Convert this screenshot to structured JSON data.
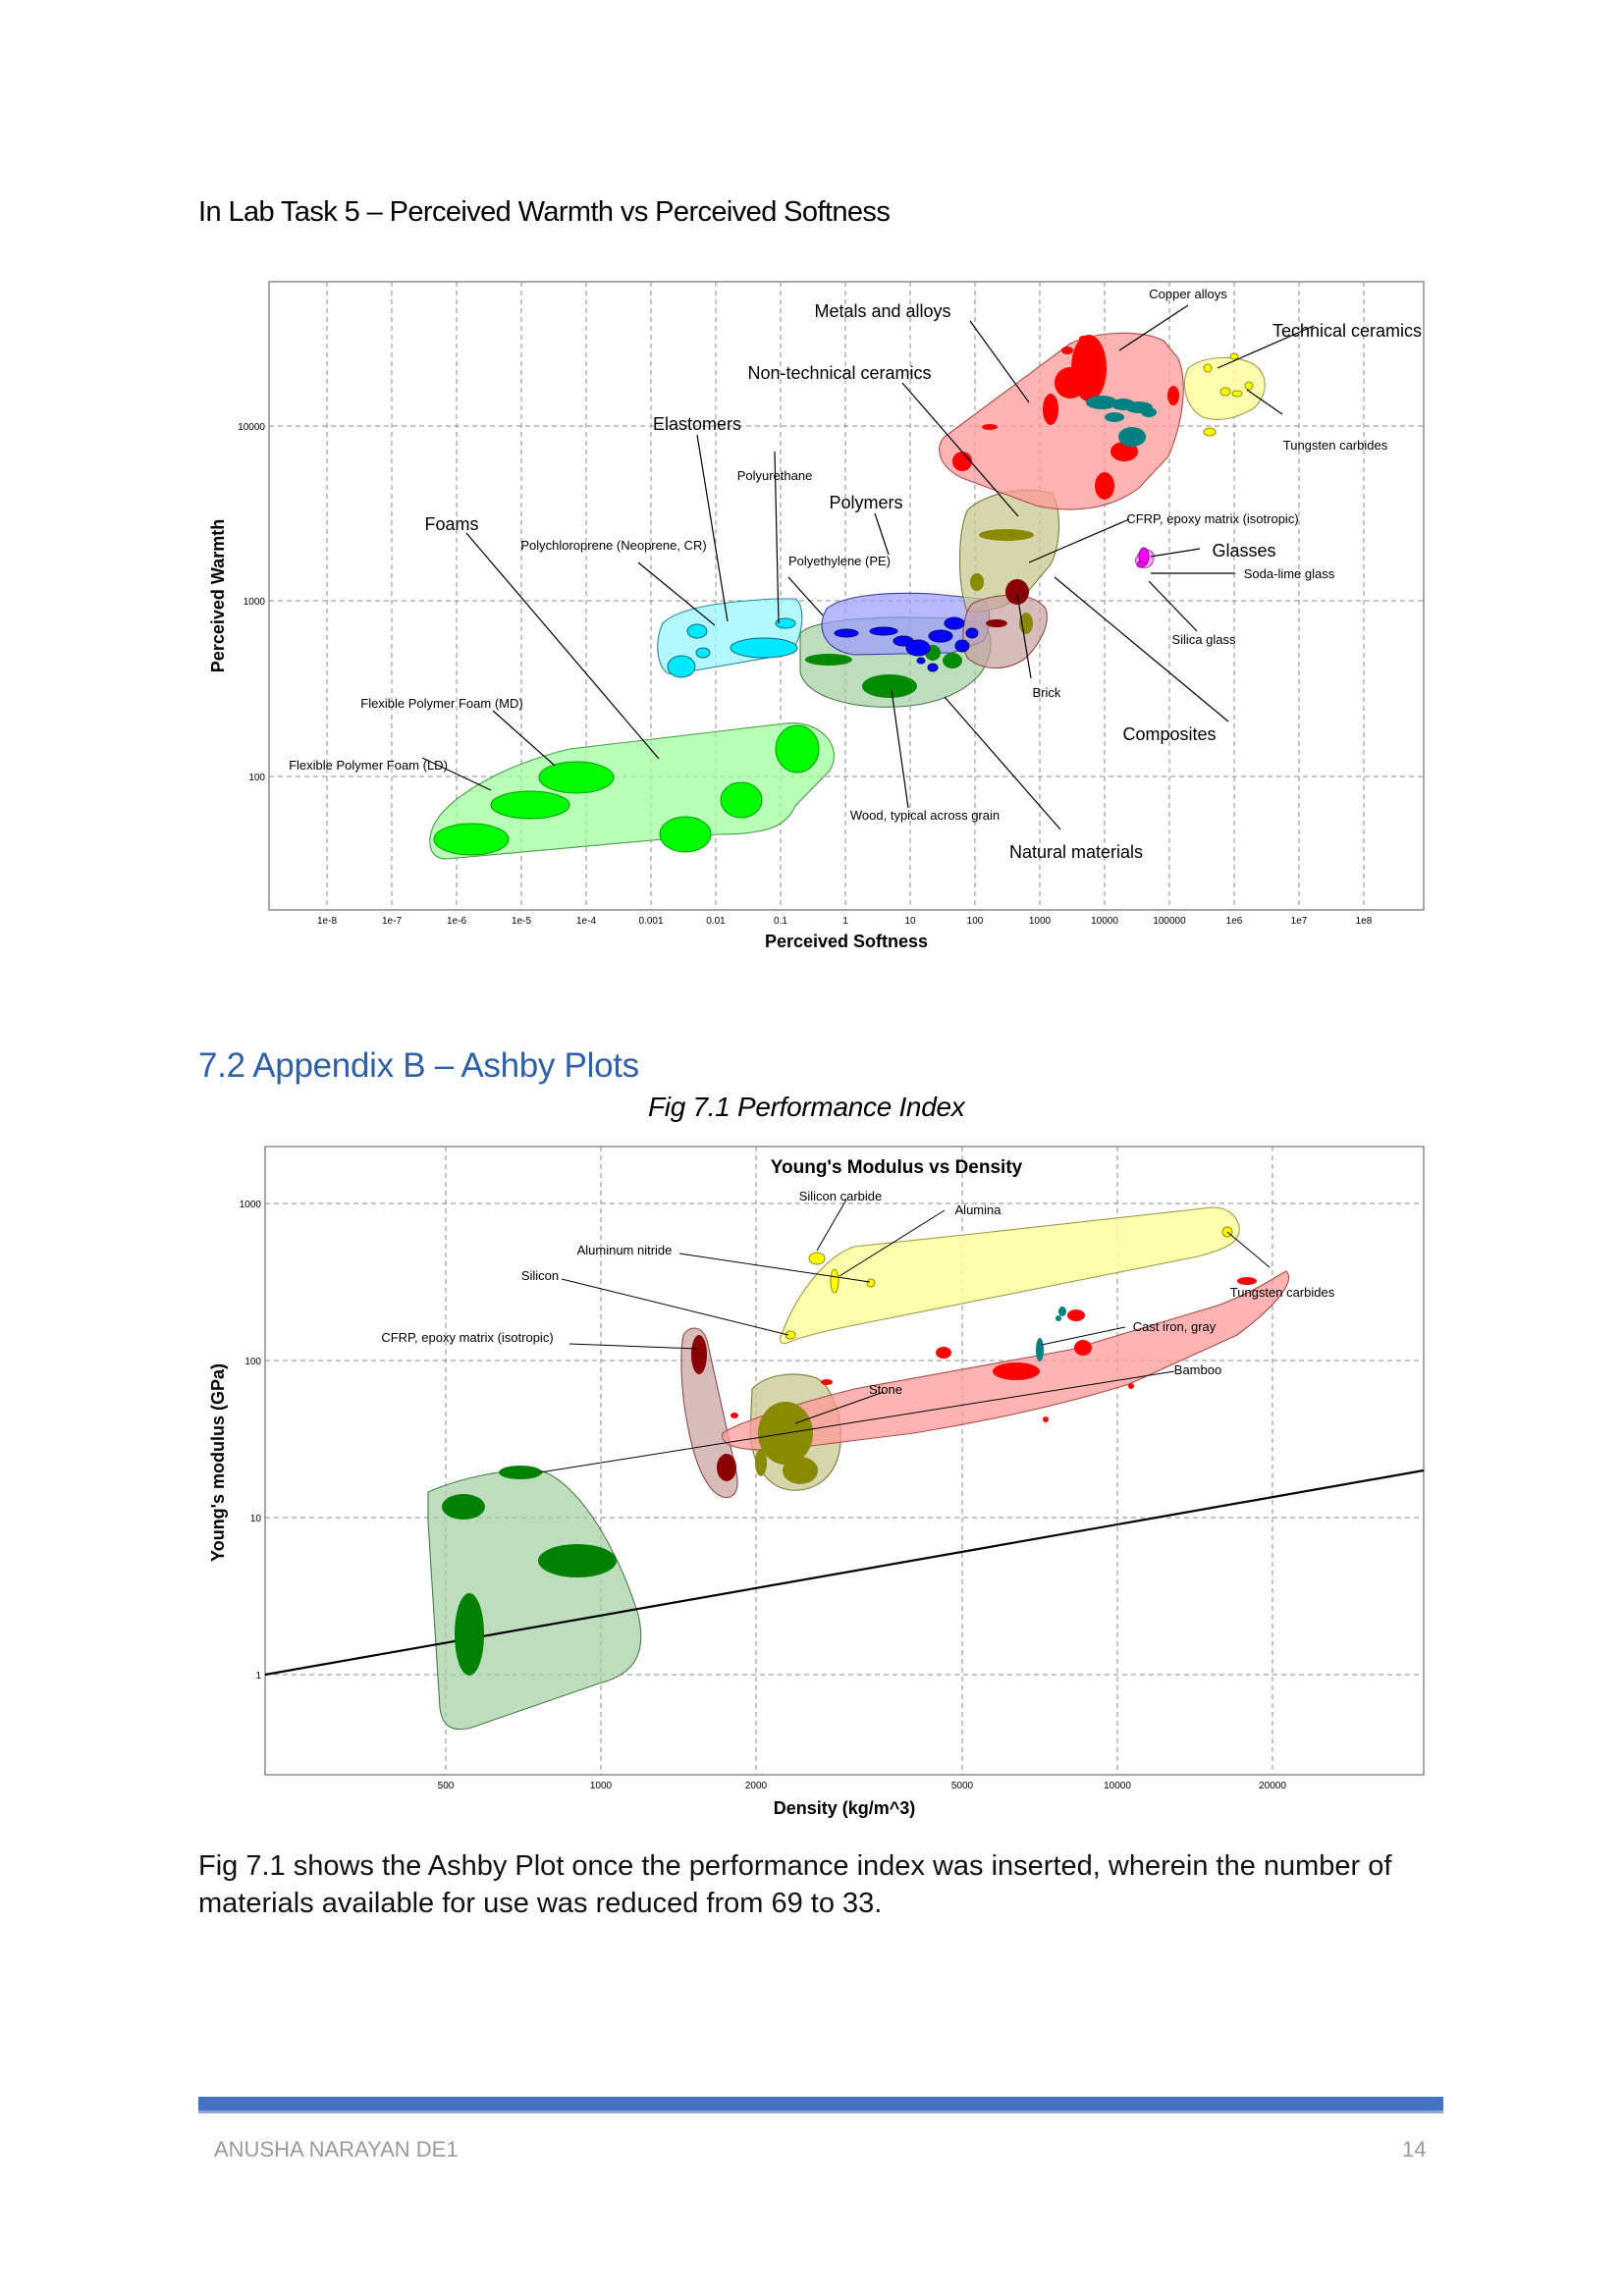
{
  "lab_title": "In Lab Task 5 – Perceived Warmth vs Perceived Softness",
  "appendix_title": "7.2 Appendix B – Ashby Plots",
  "figure_caption": "Fig 7.1 Performance Index",
  "body_text": "Fig 7.1 shows the Ashby Plot once the performance index was inserted, wherein the number of materials available for use was reduced from 69 to 33.",
  "footer": {
    "author": "ANUSHA NARAYAN DE1",
    "page": "14"
  },
  "colors": {
    "accent": "#4472c4",
    "heading_blue": "#2f5fa8"
  },
  "chart_data": [
    {
      "type": "scatter",
      "title": "",
      "xlabel": "Perceived Softness",
      "ylabel": "Perceived Warmth",
      "xscale": "log",
      "yscale": "log",
      "xlim": [
        1e-09,
        1000000000.0
      ],
      "ylim": [
        20,
        100000
      ],
      "grid": true,
      "xticks": [
        "1e-8",
        "1e-7",
        "1e-6",
        "1e-5",
        "1e-4",
        "0.001",
        "0.01",
        "0.1",
        "1",
        "10",
        "100",
        "1000",
        "10000",
        "100000",
        "1e6",
        "1e7",
        "1e8"
      ],
      "yticks": [
        "100",
        "1000",
        "10000"
      ],
      "families": [
        {
          "name": "Metals and alloys",
          "color": "#ff9a9a"
        },
        {
          "name": "Technical ceramics",
          "color": "#ffff9a"
        },
        {
          "name": "Non-technical ceramics",
          "color": "#c8c890"
        },
        {
          "name": "Composites",
          "color": "#c8a0a0"
        },
        {
          "name": "Polymers",
          "color": "#9a9aff"
        },
        {
          "name": "Elastomers",
          "color": "#9af5ff"
        },
        {
          "name": "Foams",
          "color": "#9aff9a"
        },
        {
          "name": "Natural materials",
          "color": "#a0d0a0"
        },
        {
          "name": "Glasses",
          "color": "#ff9aff"
        }
      ],
      "annotations": [
        "Metals and alloys",
        "Copper alloys",
        "Technical ceramics",
        "Non-technical ceramics",
        "Tungsten carbides",
        "Elastomers",
        "Polyurethane",
        "Polymers",
        "CFRP, epoxy matrix (isotropic)",
        "Foams",
        "Polychloroprene (Neoprene, CR)",
        "Polyethylene (PE)",
        "Glasses",
        "Soda-lime glass",
        "Silica glass",
        "Brick",
        "Flexible Polymer Foam (MD)",
        "Composites",
        "Flexible Polymer Foam (LD)",
        "Wood, typical across grain",
        "Natural materials"
      ]
    },
    {
      "type": "scatter",
      "title": "Young's Modulus vs Density",
      "xlabel": "Density (kg/m^3)",
      "ylabel": "Young's modulus (GPa)",
      "xscale": "log",
      "yscale": "log",
      "xlim": [
        230,
        40000
      ],
      "ylim": [
        0.2,
        2000
      ],
      "grid": true,
      "xticks": [
        "500",
        "1000",
        "2000",
        "5000",
        "10000",
        "20000"
      ],
      "yticks": [
        "1",
        "10",
        "100",
        "1000"
      ],
      "performance_index_line": {
        "from": [
          230,
          1
        ],
        "to": [
          40000,
          17.5
        ]
      },
      "annotations": [
        "Silicon carbide",
        "Alumina",
        "Aluminum nitride",
        "Silicon",
        "Tungsten carbides",
        "CFRP, epoxy matrix (isotropic)",
        "Cast iron, gray",
        "Bamboo",
        "Stone"
      ]
    }
  ]
}
